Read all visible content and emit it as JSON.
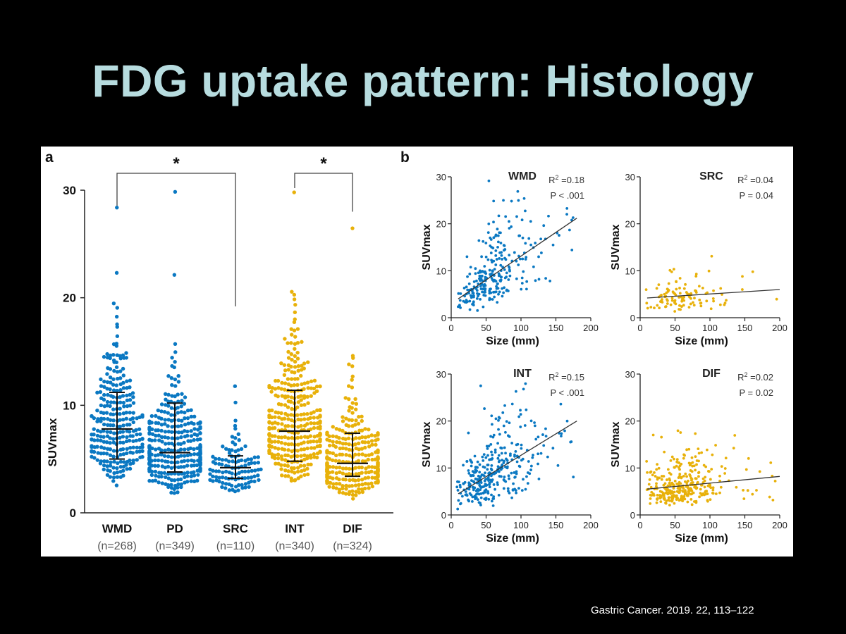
{
  "slide": {
    "title": "FDG uptake pattern: Histology",
    "citation": "Gastric Cancer. 2019. 22, 113–122"
  },
  "colors": {
    "blue": "#0a78c2",
    "gold": "#e8b10a",
    "title": "#b7dcdf",
    "fit_line": "#333333"
  },
  "chart_data": [
    {
      "panel": "a",
      "type": "scatter",
      "subtype": "dot-plot with mean and SD bars",
      "ylabel": "SUVmax",
      "ylim": [
        0,
        30
      ],
      "yticks": [
        "0",
        "10",
        "20",
        "30"
      ],
      "categories": [
        {
          "name": "WMD",
          "n_label": "(n=268)",
          "n": 268,
          "color": "blue",
          "mean": 7.8,
          "sd_low": 5.0,
          "sd_high": 11.2,
          "median": 7.8,
          "max": 28.4,
          "min": 1.7
        },
        {
          "name": "PD",
          "n_label": "(n=349)",
          "n": 349,
          "color": "blue",
          "mean": 5.6,
          "sd_low": 3.8,
          "sd_high": 10.2,
          "median": 5.6,
          "max": 29.8,
          "min": 1.3
        },
        {
          "name": "SRC",
          "n_label": "(n=110)",
          "n": 110,
          "color": "blue",
          "mean": 4.2,
          "sd_low": 3.2,
          "sd_high": 5.3,
          "median": 4.2,
          "max": 11.8,
          "min": 2.0
        },
        {
          "name": "INT",
          "n_label": "(n=340)",
          "n": 340,
          "color": "gold",
          "mean": 7.6,
          "sd_low": 4.8,
          "sd_high": 11.4,
          "median": 7.6,
          "max": 29.8,
          "min": 1.6
        },
        {
          "name": "DIF",
          "n_label": "(n=324)",
          "n": 324,
          "color": "gold",
          "mean": 4.6,
          "sd_low": 3.4,
          "sd_high": 7.4,
          "median": 4.6,
          "max": 26.4,
          "min": 1.3
        }
      ],
      "annotations": [
        {
          "text": "*",
          "from": "WMD",
          "to": "SRC"
        },
        {
          "text": "*",
          "from": "INT",
          "to": "DIF"
        }
      ]
    },
    {
      "panel": "b",
      "type": "scatter",
      "subtype": "2x2 small multiples with linear fit",
      "xlabel": "Size (mm)",
      "ylabel": "SUVmax",
      "xlim": [
        0,
        200
      ],
      "ylim": [
        0,
        30
      ],
      "xticks": [
        "0",
        "50",
        "100",
        "150",
        "200"
      ],
      "yticks": [
        "0",
        "10",
        "20",
        "30"
      ],
      "subplots": [
        {
          "title": "WMD",
          "r2_label": "R",
          "r2_sup": "2",
          "r2_value": " =0.18",
          "p_text": "P < .001",
          "color": "blue",
          "n": 268,
          "xmax": 180,
          "fit": {
            "x": [
              10,
              180
            ],
            "y": [
              4.0,
              21.2
            ]
          }
        },
        {
          "title": "SRC",
          "r2_label": "R",
          "r2_sup": "2",
          "r2_value": " =0.04",
          "p_text": "P =  0.04",
          "color": "gold",
          "n": 110,
          "xmax": 200,
          "fit": {
            "x": [
              10,
              200
            ],
            "y": [
              4.2,
              6.0
            ]
          }
        },
        {
          "title": "INT",
          "r2_label": "R",
          "r2_sup": "2",
          "r2_value": " =0.15",
          "p_text": "P < .001",
          "color": "blue",
          "n": 340,
          "xmax": 180,
          "fit": {
            "x": [
              10,
              180
            ],
            "y": [
              4.5,
              20.0
            ]
          }
        },
        {
          "title": "DIF",
          "r2_label": "R",
          "r2_sup": "2",
          "r2_value": " =0.02",
          "p_text": "P =  0.02",
          "color": "gold",
          "n": 324,
          "xmax": 200,
          "fit": {
            "x": [
              10,
              200
            ],
            "y": [
              5.5,
              8.2
            ]
          }
        }
      ]
    }
  ]
}
